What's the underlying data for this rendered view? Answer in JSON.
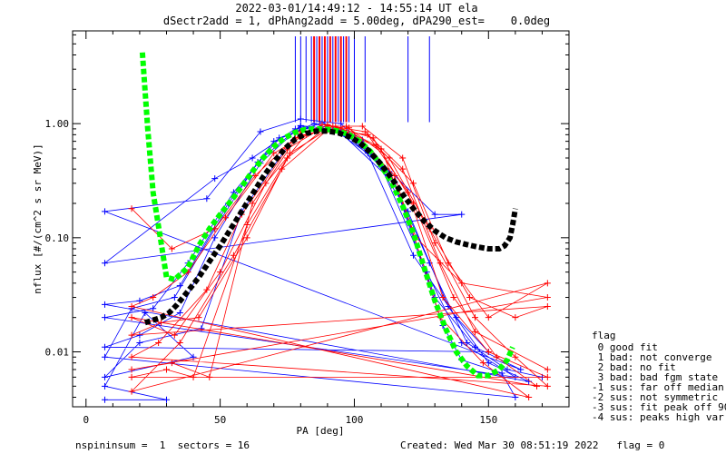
{
  "chart_data": {
    "type": "line",
    "title": "2022-03-01/14:49:12 - 14:55:14 UT ela",
    "subtitle": "dSectr2add = 1, dPhAng2add = 5.00deg, dPA290_est=    0.0deg",
    "xlabel": "PA [deg]",
    "ylabel": "nflux [#/(cm^2 s sr MeV)]",
    "xlim": [
      -5,
      180
    ],
    "ylim": [
      0.0033,
      6.5
    ],
    "yscale": "log",
    "x_ticks": [
      0,
      50,
      100,
      150
    ],
    "x_tick_labels": [
      "0",
      "50",
      "100",
      "150"
    ],
    "y_ticks": [
      0.01,
      0.1,
      1.0
    ],
    "y_tick_labels": [
      "0.01",
      "0.10",
      "1.00"
    ],
    "grid": false,
    "legend_position": "right",
    "series": [
      {
        "color": "#0000ff",
        "marker": "plus",
        "values": [
          [
            7,
            0.0038
          ],
          [
            30,
            0.0038
          ],
          [
            7,
            0.005
          ],
          [
            22,
            0.022
          ],
          [
            40,
            0.009
          ],
          [
            7,
            0.006
          ],
          [
            20,
            0.012
          ],
          [
            43,
            0.016
          ],
          [
            58,
            0.17
          ],
          [
            80,
            0.92
          ],
          [
            95,
            0.83
          ],
          [
            115,
            0.3
          ],
          [
            133,
            0.017
          ],
          [
            140,
            0.0085
          ],
          [
            155,
            0.0065
          ],
          [
            160,
            0.004
          ],
          [
            7,
            0.009
          ],
          [
            17,
            0.024
          ],
          [
            33,
            0.03
          ],
          [
            48,
            0.12
          ],
          [
            64,
            0.46
          ],
          [
            80,
            0.96
          ],
          [
            95,
            0.88
          ],
          [
            110,
            0.42
          ],
          [
            127,
            0.05
          ],
          [
            140,
            0.012
          ],
          [
            160,
            0.006
          ],
          [
            7,
            0.02
          ],
          [
            25,
            0.024
          ],
          [
            38,
            0.06
          ],
          [
            55,
            0.25
          ],
          [
            72,
            0.75
          ],
          [
            88,
            1.02
          ],
          [
            103,
            0.72
          ],
          [
            120,
            0.17
          ],
          [
            135,
            0.025
          ],
          [
            150,
            0.008
          ],
          [
            165,
            0.0055
          ],
          [
            7,
            0.026
          ],
          [
            20,
            0.028
          ],
          [
            35,
            0.038
          ],
          [
            53,
            0.2
          ],
          [
            70,
            0.7
          ],
          [
            85,
            1.0
          ],
          [
            100,
            0.78
          ],
          [
            115,
            0.31
          ],
          [
            130,
            0.03
          ],
          [
            145,
            0.011
          ],
          [
            162,
            0.007
          ],
          [
            7,
            0.17
          ],
          [
            45,
            0.22
          ],
          [
            65,
            0.85
          ],
          [
            80,
            1.1
          ],
          [
            95,
            1.0
          ],
          [
            130,
            0.16
          ],
          [
            140,
            0.16
          ],
          [
            7,
            0.06
          ],
          [
            48,
            0.33
          ],
          [
            62,
            0.5
          ],
          [
            78,
            0.9
          ],
          [
            92,
            0.9
          ],
          [
            105,
            0.55
          ],
          [
            122,
            0.07
          ],
          [
            138,
            0.02
          ],
          [
            150,
            0.01
          ],
          [
            7,
            0.011
          ],
          [
            20,
            0.014
          ],
          [
            35,
            0.022
          ],
          [
            48,
            0.1
          ],
          [
            65,
            0.45
          ],
          [
            80,
            0.95
          ],
          [
            97,
            0.82
          ],
          [
            113,
            0.38
          ],
          [
            128,
            0.06
          ],
          [
            142,
            0.012
          ],
          [
            157,
            0.007
          ],
          [
            170,
            0.006
          ]
        ]
      },
      {
        "color": "#ff0000",
        "marker": "plus",
        "values": [
          [
            17,
            0.18
          ],
          [
            32,
            0.08
          ],
          [
            48,
            0.12
          ],
          [
            63,
            0.35
          ],
          [
            78,
            0.75
          ],
          [
            93,
            0.95
          ],
          [
            108,
            0.65
          ],
          [
            122,
            0.3
          ],
          [
            135,
            0.06
          ],
          [
            150,
            0.02
          ],
          [
            172,
            0.04
          ],
          [
            17,
            0.0045
          ],
          [
            35,
            0.012
          ],
          [
            55,
            0.07
          ],
          [
            73,
            0.4
          ],
          [
            90,
            0.88
          ],
          [
            105,
            0.8
          ],
          [
            120,
            0.25
          ],
          [
            133,
            0.03
          ],
          [
            150,
            0.01
          ],
          [
            172,
            0.006
          ],
          [
            17,
            0.006
          ],
          [
            30,
            0.007
          ],
          [
            40,
            0.006
          ],
          [
            60,
            0.13
          ],
          [
            75,
            0.5
          ],
          [
            90,
            0.95
          ],
          [
            103,
            0.95
          ],
          [
            118,
            0.5
          ],
          [
            130,
            0.09
          ],
          [
            145,
            0.02
          ],
          [
            160,
            0.009
          ],
          [
            172,
            0.005
          ],
          [
            17,
            0.009
          ],
          [
            27,
            0.012
          ],
          [
            45,
            0.035
          ],
          [
            58,
            0.16
          ],
          [
            75,
            0.6
          ],
          [
            90,
            0.98
          ],
          [
            107,
            0.75
          ],
          [
            122,
            0.2
          ],
          [
            137,
            0.03
          ],
          [
            153,
            0.009
          ],
          [
            168,
            0.005
          ],
          [
            17,
            0.02
          ],
          [
            33,
            0.014
          ],
          [
            50,
            0.05
          ],
          [
            67,
            0.3
          ],
          [
            82,
            0.8
          ],
          [
            97,
            0.95
          ],
          [
            113,
            0.5
          ],
          [
            128,
            0.12
          ],
          [
            143,
            0.03
          ],
          [
            160,
            0.02
          ],
          [
            172,
            0.025
          ],
          [
            17,
            0.014
          ],
          [
            28,
            0.018
          ],
          [
            42,
            0.02
          ],
          [
            60,
            0.1
          ],
          [
            76,
            0.55
          ],
          [
            92,
            0.95
          ],
          [
            110,
            0.6
          ],
          [
            123,
            0.1
          ],
          [
            140,
            0.04
          ],
          [
            172,
            0.03
          ],
          [
            17,
            0.007
          ],
          [
            32,
            0.008
          ],
          [
            46,
            0.006
          ],
          [
            62,
            0.2
          ],
          [
            80,
            0.85
          ],
          [
            98,
            0.92
          ],
          [
            115,
            0.35
          ],
          [
            132,
            0.02
          ],
          [
            148,
            0.008
          ],
          [
            165,
            0.004
          ],
          [
            17,
            0.025
          ],
          [
            25,
            0.03
          ],
          [
            38,
            0.05
          ],
          [
            52,
            0.15
          ],
          [
            70,
            0.55
          ],
          [
            88,
            0.98
          ],
          [
            104,
            0.85
          ],
          [
            118,
            0.4
          ],
          [
            132,
            0.06
          ],
          [
            145,
            0.015
          ],
          [
            172,
            0.007
          ]
        ]
      },
      {
        "color": "#00ff00",
        "values": [
          [
            21,
            4.2
          ],
          [
            23,
            0.9
          ],
          [
            25,
            0.25
          ],
          [
            28,
            0.09
          ],
          [
            30,
            0.045
          ],
          [
            33,
            0.043
          ],
          [
            38,
            0.055
          ],
          [
            42,
            0.085
          ],
          [
            46,
            0.12
          ],
          [
            50,
            0.16
          ],
          [
            54,
            0.21
          ],
          [
            58,
            0.28
          ],
          [
            62,
            0.38
          ],
          [
            66,
            0.5
          ],
          [
            70,
            0.63
          ],
          [
            74,
            0.75
          ],
          [
            78,
            0.84
          ],
          [
            82,
            0.89
          ],
          [
            86,
            0.9
          ],
          [
            90,
            0.89
          ],
          [
            94,
            0.86
          ],
          [
            98,
            0.8
          ],
          [
            102,
            0.7
          ],
          [
            106,
            0.57
          ],
          [
            110,
            0.43
          ],
          [
            114,
            0.3
          ],
          [
            118,
            0.19
          ],
          [
            122,
            0.11
          ],
          [
            126,
            0.055
          ],
          [
            130,
            0.028
          ],
          [
            134,
            0.016
          ],
          [
            138,
            0.01
          ],
          [
            142,
            0.0075
          ],
          [
            146,
            0.0062
          ],
          [
            150,
            0.0062
          ],
          [
            154,
            0.007
          ],
          [
            157,
            0.0085
          ],
          [
            159,
            0.011
          ]
        ]
      },
      {
        "color": "#000000",
        "values": [
          [
            22,
            0.018
          ],
          [
            25,
            0.019
          ],
          [
            28,
            0.02
          ],
          [
            31,
            0.022
          ],
          [
            34,
            0.026
          ],
          [
            38,
            0.034
          ],
          [
            42,
            0.045
          ],
          [
            46,
            0.062
          ],
          [
            50,
            0.085
          ],
          [
            54,
            0.12
          ],
          [
            58,
            0.17
          ],
          [
            62,
            0.24
          ],
          [
            66,
            0.34
          ],
          [
            70,
            0.46
          ],
          [
            74,
            0.6
          ],
          [
            78,
            0.73
          ],
          [
            82,
            0.82
          ],
          [
            86,
            0.86
          ],
          [
            90,
            0.86
          ],
          [
            94,
            0.83
          ],
          [
            98,
            0.77
          ],
          [
            102,
            0.68
          ],
          [
            106,
            0.56
          ],
          [
            110,
            0.44
          ],
          [
            114,
            0.33
          ],
          [
            118,
            0.24
          ],
          [
            122,
            0.18
          ],
          [
            126,
            0.14
          ],
          [
            130,
            0.115
          ],
          [
            134,
            0.1
          ],
          [
            138,
            0.092
          ],
          [
            142,
            0.087
          ],
          [
            146,
            0.083
          ],
          [
            150,
            0.08
          ],
          [
            154,
            0.08
          ],
          [
            156,
            0.085
          ],
          [
            158,
            0.1
          ],
          [
            159,
            0.13
          ],
          [
            160,
            0.18
          ]
        ]
      }
    ],
    "vlines_blue": [
      78,
      80,
      82,
      84,
      86,
      88,
      90,
      92,
      94,
      96,
      98,
      100,
      104,
      120,
      128
    ],
    "vlines_red": [
      85,
      87,
      89,
      91,
      93,
      95,
      97
    ]
  },
  "legend": {
    "header": "flag",
    "items": [
      " 0 good fit",
      " 1 bad: not converge",
      " 2 bad: no fit",
      " 3 bad: bad fgm state",
      "-1 sus: far off median",
      "-2 sus: not symmetric",
      "-3 sus: fit peak off 90",
      "-4 sus: peaks high var"
    ]
  },
  "footer": {
    "left": "nspininsum =  1  sectors = 16",
    "right": "Created: Wed Mar 30 08:51:19 2022   flag = 0"
  }
}
